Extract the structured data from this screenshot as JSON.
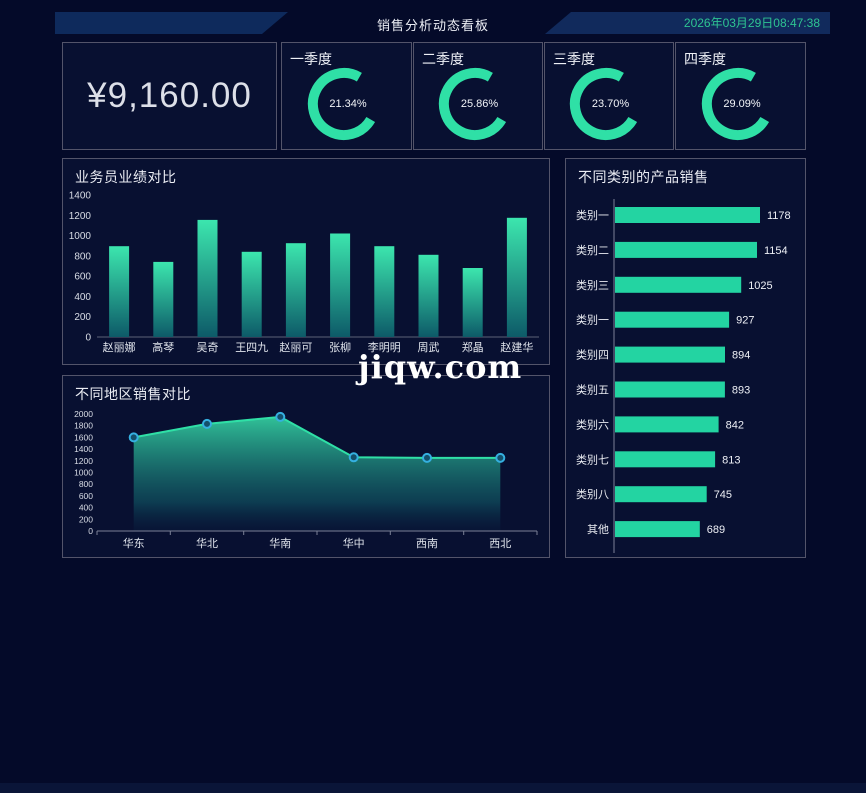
{
  "header": {
    "title": "销售分析动态看板",
    "datetime": "2026年03月29日08:47:38"
  },
  "stats": {
    "total": "¥9,160.00",
    "quarters": [
      {
        "label": "一季度",
        "value": "21.34%"
      },
      {
        "label": "二季度",
        "value": "25.86%"
      },
      {
        "label": "三季度",
        "value": "23.70%"
      },
      {
        "label": "四季度",
        "value": "29.09%"
      }
    ]
  },
  "watermark": "jiqw.com",
  "colors": {
    "green": "#2fe0a6",
    "bar_top": "#3ce6ae",
    "bar_bottom": "#0d5a68",
    "area_top": "#33ca9d",
    "area_bottom": "#0a2e4e",
    "hbar": "#23d4a2",
    "marker_stroke": "#35b0e0",
    "marker_fill": "#14506b",
    "axis": "#5c6278",
    "tick_text": "#d9dde6"
  },
  "chart_data": [
    {
      "type": "bar",
      "title": "业务员业绩对比",
      "categories": [
        "赵丽娜",
        "高琴",
        "吴奇",
        "王四九",
        "赵丽可",
        "张柳",
        "李明明",
        "周武",
        "郑晶",
        "赵建华"
      ],
      "values": [
        895,
        740,
        1155,
        840,
        925,
        1020,
        895,
        810,
        680,
        1175
      ],
      "xlabel": "",
      "ylabel": "",
      "ylim": [
        0,
        1400
      ],
      "ytick_step": 200,
      "grid": false,
      "legend": "none"
    },
    {
      "type": "area",
      "title": "不同地区销售对比",
      "categories": [
        "华东",
        "华北",
        "华南",
        "华中",
        "西南",
        "西北"
      ],
      "values": [
        1600,
        1830,
        1950,
        1260,
        1250,
        1250
      ],
      "xlabel": "",
      "ylabel": "",
      "ylim": [
        0,
        2000
      ],
      "ytick_step": 200,
      "grid": false,
      "legend": "none"
    },
    {
      "type": "bar",
      "orientation": "horizontal",
      "title": "不同类别的产品销售",
      "categories": [
        "类别一",
        "类别二",
        "类别三",
        "类别一",
        "类别四",
        "类别五",
        "类别六",
        "类别七",
        "类别八",
        "其他"
      ],
      "values": [
        1178,
        1154,
        1025,
        927,
        894,
        893,
        842,
        813,
        745,
        689
      ],
      "xlabel": "",
      "ylabel": "",
      "xlim": [
        0,
        1400
      ],
      "grid": false,
      "legend": "none",
      "value_labels": true
    }
  ]
}
